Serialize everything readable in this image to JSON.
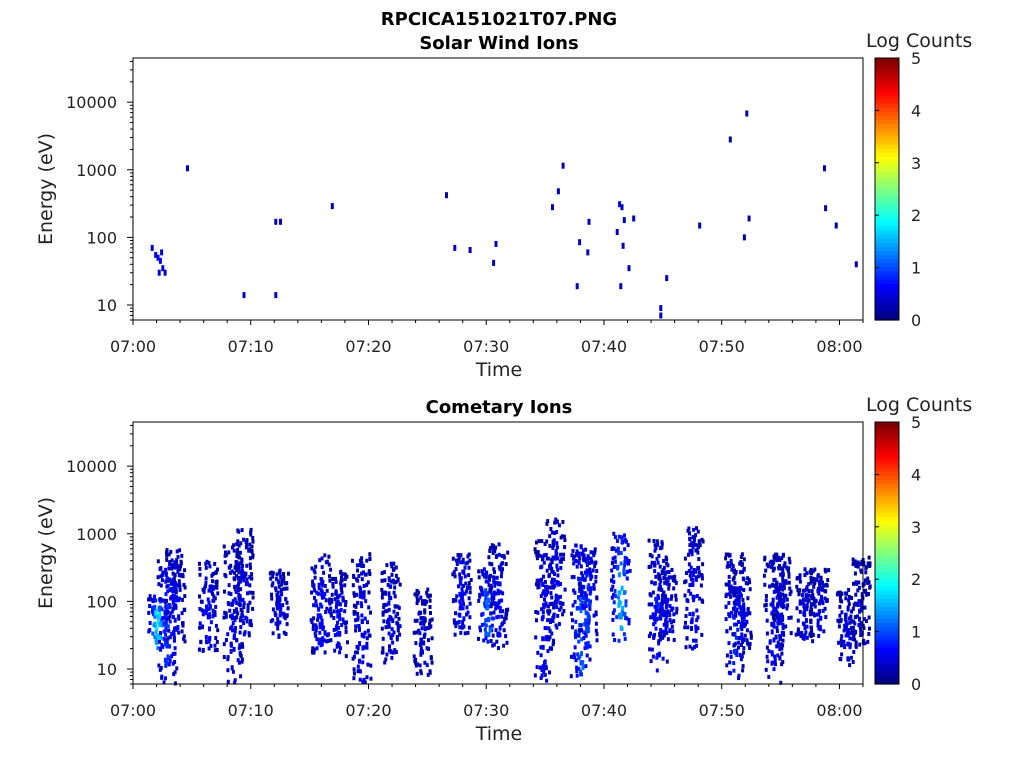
{
  "figure_title": "RPCICA151021T07.PNG",
  "chart_data": [
    {
      "type": "heatmap",
      "title": "Solar Wind Ions",
      "xlabel": "Time",
      "ylabel": "Energy (eV)",
      "x_ticks": [
        "07:00",
        "07:10",
        "07:20",
        "07:30",
        "07:40",
        "07:50",
        "08:00"
      ],
      "x_range_minutes": [
        0,
        62
      ],
      "y_ticks": [
        "10",
        "100",
        "1000",
        "10000"
      ],
      "y_range": [
        6,
        45000
      ],
      "y_scale": "log",
      "colorbar": {
        "label": "Log Counts",
        "min": 0,
        "max": 5,
        "ticks": [
          "0",
          "1",
          "2",
          "3",
          "4",
          "5"
        ]
      },
      "points": [
        [
          1.5,
          70,
          0.3
        ],
        [
          1.8,
          55,
          0.4
        ],
        [
          2.0,
          50,
          0.6
        ],
        [
          2.2,
          45,
          0.5
        ],
        [
          2.4,
          35,
          0.4
        ],
        [
          2.6,
          30,
          0.3
        ],
        [
          2.1,
          30,
          0.3
        ],
        [
          2.3,
          60,
          0.4
        ],
        [
          4.5,
          1050,
          0.3
        ],
        [
          9.3,
          14,
          0.3
        ],
        [
          12.0,
          14,
          0.3
        ],
        [
          12.0,
          170,
          0.3
        ],
        [
          12.4,
          170,
          0.3
        ],
        [
          16.8,
          290,
          0.2
        ],
        [
          26.5,
          420,
          0.2
        ],
        [
          27.2,
          70,
          0.3
        ],
        [
          28.5,
          65,
          0.3
        ],
        [
          30.5,
          42,
          0.3
        ],
        [
          30.7,
          80,
          0.3
        ],
        [
          35.5,
          280,
          0.2
        ],
        [
          36.0,
          480,
          0.3
        ],
        [
          36.4,
          1150,
          0.3
        ],
        [
          37.6,
          19,
          0.3
        ],
        [
          37.8,
          85,
          0.3
        ],
        [
          38.5,
          60,
          0.3
        ],
        [
          38.6,
          170,
          0.3
        ],
        [
          41.0,
          120,
          0.3
        ],
        [
          41.2,
          310,
          0.4
        ],
        [
          41.4,
          280,
          0.3
        ],
        [
          41.6,
          180,
          0.3
        ],
        [
          41.3,
          19,
          0.3
        ],
        [
          41.5,
          75,
          0.3
        ],
        [
          42.0,
          35,
          0.3
        ],
        [
          42.4,
          190,
          0.3
        ],
        [
          44.7,
          9,
          0.4
        ],
        [
          44.7,
          7,
          0.3
        ],
        [
          45.2,
          25,
          0.3
        ],
        [
          48.0,
          150,
          0.2
        ],
        [
          50.6,
          2800,
          0.2
        ],
        [
          51.8,
          100,
          0.2
        ],
        [
          52.0,
          6800,
          0.2
        ],
        [
          52.2,
          190,
          0.2
        ],
        [
          58.6,
          1050,
          0.2
        ],
        [
          58.7,
          270,
          0.2
        ],
        [
          59.6,
          150,
          0.2
        ],
        [
          61.3,
          40,
          0.2
        ]
      ]
    },
    {
      "type": "heatmap",
      "title": "Cometary Ions",
      "xlabel": "Time",
      "ylabel": "Energy (eV)",
      "x_ticks": [
        "07:00",
        "07:10",
        "07:20",
        "07:30",
        "07:40",
        "07:50",
        "08:00"
      ],
      "x_range_minutes": [
        0,
        62
      ],
      "y_ticks": [
        "10",
        "100",
        "1000",
        "10000"
      ],
      "y_range": [
        6,
        45000
      ],
      "y_scale": "log",
      "colorbar": {
        "label": "Log Counts",
        "min": 0,
        "max": 5,
        "ticks": [
          "0",
          "1",
          "2",
          "3",
          "4",
          "5"
        ]
      },
      "bursts": [
        {
          "t": 2.0,
          "elo": 20,
          "ehi": 120,
          "peak": 1.9
        },
        {
          "t": 2.8,
          "elo": 6,
          "ehi": 400,
          "peak": 1.0
        },
        {
          "t": 3.5,
          "elo": 20,
          "ehi": 600,
          "peak": 0.6
        },
        {
          "t": 6.3,
          "elo": 15,
          "ehi": 400,
          "peak": 0.7
        },
        {
          "t": 8.4,
          "elo": 6,
          "ehi": 700,
          "peak": 0.6
        },
        {
          "t": 9.3,
          "elo": 20,
          "ehi": 1300,
          "peak": 0.5
        },
        {
          "t": 12.3,
          "elo": 25,
          "ehi": 300,
          "peak": 0.5
        },
        {
          "t": 15.8,
          "elo": 15,
          "ehi": 500,
          "peak": 0.7
        },
        {
          "t": 17.3,
          "elo": 15,
          "ehi": 300,
          "peak": 0.6
        },
        {
          "t": 19.3,
          "elo": 6,
          "ehi": 500,
          "peak": 0.6
        },
        {
          "t": 21.8,
          "elo": 12,
          "ehi": 400,
          "peak": 0.5
        },
        {
          "t": 24.5,
          "elo": 8,
          "ehi": 150,
          "peak": 0.4
        },
        {
          "t": 27.8,
          "elo": 30,
          "ehi": 500,
          "peak": 0.7
        },
        {
          "t": 30.0,
          "elo": 25,
          "ehi": 300,
          "peak": 1.2
        },
        {
          "t": 30.9,
          "elo": 20,
          "ehi": 700,
          "peak": 0.6
        },
        {
          "t": 34.8,
          "elo": 6,
          "ehi": 800,
          "peak": 0.6
        },
        {
          "t": 35.8,
          "elo": 40,
          "ehi": 1700,
          "peak": 0.6
        },
        {
          "t": 37.9,
          "elo": 6,
          "ehi": 700,
          "peak": 1.2
        },
        {
          "t": 38.5,
          "elo": 15,
          "ehi": 600,
          "peak": 1.0
        },
        {
          "t": 41.3,
          "elo": 25,
          "ehi": 1000,
          "peak": 1.6
        },
        {
          "t": 44.5,
          "elo": 8,
          "ehi": 800,
          "peak": 0.8
        },
        {
          "t": 45.3,
          "elo": 25,
          "ehi": 300,
          "peak": 0.6
        },
        {
          "t": 47.5,
          "elo": 20,
          "ehi": 1300,
          "peak": 0.6
        },
        {
          "t": 51.0,
          "elo": 6,
          "ehi": 500,
          "peak": 0.9
        },
        {
          "t": 51.6,
          "elo": 20,
          "ehi": 300,
          "peak": 0.6
        },
        {
          "t": 54.3,
          "elo": 6,
          "ehi": 500,
          "peak": 0.6
        },
        {
          "t": 55.0,
          "elo": 30,
          "ehi": 500,
          "peak": 0.5
        },
        {
          "t": 57.0,
          "elo": 20,
          "ehi": 300,
          "peak": 0.5
        },
        {
          "t": 58.2,
          "elo": 30,
          "ehi": 300,
          "peak": 0.5
        },
        {
          "t": 60.5,
          "elo": 10,
          "ehi": 150,
          "peak": 0.5
        },
        {
          "t": 61.7,
          "elo": 20,
          "ehi": 450,
          "peak": 0.4
        }
      ]
    }
  ]
}
